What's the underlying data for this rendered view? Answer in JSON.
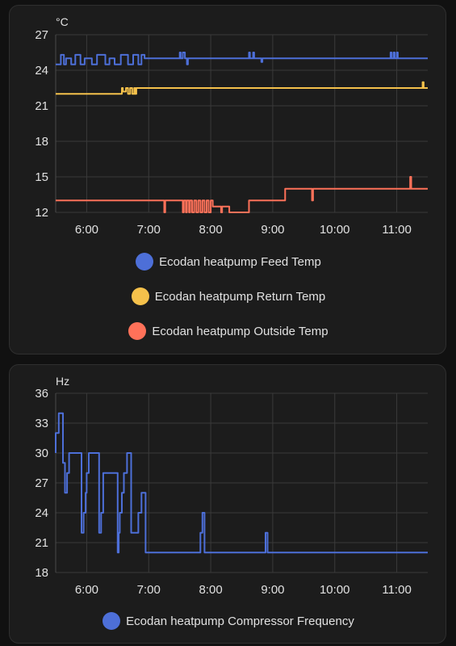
{
  "chart_data": [
    {
      "type": "line",
      "unit": "°C",
      "ylim": [
        12,
        27
      ],
      "yticks": [
        12,
        15,
        18,
        21,
        24,
        27
      ],
      "xlim": [
        "05:30",
        "11:30"
      ],
      "xticks": [
        "6:00",
        "7:00",
        "8:00",
        "9:00",
        "10:00",
        "11:00"
      ],
      "grid": true,
      "legend": "bottom",
      "series": [
        {
          "name": "Ecodan heatpump Feed Temp",
          "color": "#4d6fd8",
          "x": [
            "05:30",
            "05:32",
            "05:35",
            "05:35",
            "05:38",
            "05:38",
            "05:40",
            "05:40",
            "05:45",
            "05:45",
            "05:49",
            "05:49",
            "05:54",
            "05:54",
            "05:58",
            "05:58",
            "06:05",
            "06:05",
            "06:10",
            "06:10",
            "06:18",
            "06:18",
            "06:22",
            "06:22",
            "06:27",
            "06:27",
            "06:33",
            "06:33",
            "06:40",
            "06:40",
            "06:45",
            "06:45",
            "06:50",
            "06:50",
            "06:53",
            "06:53",
            "06:56",
            "06:56",
            "07:00",
            "07:00",
            "07:30",
            "07:30",
            "07:31",
            "07:31",
            "07:33",
            "07:33",
            "07:35",
            "07:35",
            "07:37",
            "07:37",
            "07:38",
            "07:38",
            "07:43",
            "07:43",
            "08:37",
            "08:37",
            "08:38",
            "08:38",
            "08:41",
            "08:41",
            "08:42",
            "08:42",
            "08:49",
            "08:49",
            "08:50",
            "08:50",
            "10:54",
            "10:54",
            "10:55",
            "10:55",
            "10:57",
            "10:57",
            "10:58",
            "10:58",
            "11:00",
            "11:00",
            "11:01",
            "11:01",
            "11:30"
          ],
          "y": [
            24.5,
            24.5,
            24.5,
            25.3,
            25.3,
            24.5,
            24.5,
            25.0,
            25.0,
            24.5,
            24.5,
            25.3,
            25.3,
            24.5,
            24.5,
            25.0,
            25.0,
            24.5,
            24.5,
            25.3,
            25.3,
            24.5,
            24.5,
            25.0,
            25.0,
            24.5,
            24.5,
            25.3,
            25.3,
            24.5,
            24.5,
            25.3,
            25.3,
            24.5,
            24.5,
            25.3,
            25.3,
            25.0,
            25.0,
            25.0,
            25.0,
            25.5,
            25.5,
            25.0,
            25.0,
            25.5,
            25.5,
            25.0,
            25.0,
            24.5,
            24.5,
            25.0,
            25.0,
            25.0,
            25.0,
            25.5,
            25.5,
            25.0,
            25.0,
            25.5,
            25.5,
            25.0,
            25.0,
            24.7,
            24.7,
            25.0,
            25.0,
            25.5,
            25.5,
            25.0,
            25.0,
            25.5,
            25.5,
            25.0,
            25.0,
            25.5,
            25.5,
            25.0,
            25.0
          ]
        },
        {
          "name": "Ecodan heatpump Return Temp",
          "color": "#f5c14b",
          "x": [
            "05:30",
            "06:34",
            "06:34",
            "06:35",
            "06:35",
            "06:38",
            "06:38",
            "06:40",
            "06:40",
            "06:42",
            "06:42",
            "06:44",
            "06:44",
            "06:46",
            "06:46",
            "06:47",
            "06:47",
            "06:48",
            "06:48",
            "06:50",
            "06:50",
            "11:25",
            "11:25",
            "11:26",
            "11:26",
            "11:30"
          ],
          "y": [
            22.0,
            22.0,
            22.5,
            22.5,
            22.2,
            22.2,
            22.5,
            22.5,
            22.0,
            22.0,
            22.5,
            22.5,
            22.0,
            22.0,
            22.5,
            22.5,
            22.0,
            22.0,
            22.5,
            22.5,
            22.5,
            22.5,
            23.0,
            23.0,
            22.5,
            22.5
          ]
        },
        {
          "name": "Ecodan heatpump Outside Temp",
          "color": "#ff7159",
          "x": [
            "05:30",
            "07:15",
            "07:15",
            "07:16",
            "07:16",
            "07:33",
            "07:33",
            "07:34",
            "07:34",
            "07:36",
            "07:36",
            "07:37",
            "07:37",
            "07:39",
            "07:39",
            "07:40",
            "07:40",
            "07:42",
            "07:42",
            "07:44",
            "07:44",
            "07:46",
            "07:46",
            "07:48",
            "07:48",
            "07:50",
            "07:50",
            "07:52",
            "07:52",
            "07:54",
            "07:54",
            "07:56",
            "07:56",
            "07:58",
            "07:58",
            "08:00",
            "08:00",
            "08:02",
            "08:02",
            "08:10",
            "08:10",
            "08:11",
            "08:11",
            "08:18",
            "08:18",
            "08:20",
            "08:20",
            "08:37",
            "08:37",
            "09:12",
            "09:12",
            "09:38",
            "09:38",
            "09:39",
            "09:39",
            "11:13",
            "11:13",
            "11:14",
            "11:14",
            "11:30"
          ],
          "y": [
            13,
            13,
            12,
            12,
            13,
            13,
            12,
            12,
            13,
            13,
            12,
            12,
            13,
            13,
            12,
            12,
            13,
            13,
            12,
            12,
            13,
            13,
            12,
            12,
            13,
            13,
            12,
            12,
            13,
            13,
            12,
            12,
            13,
            13,
            12,
            12,
            13,
            13,
            12.5,
            12.5,
            12,
            12,
            12.5,
            12.5,
            12,
            12,
            12,
            12,
            13,
            13,
            14,
            14,
            13,
            13,
            14,
            14,
            15,
            15,
            14,
            14
          ]
        }
      ]
    },
    {
      "type": "line",
      "unit": "Hz",
      "ylim": [
        18,
        36
      ],
      "yticks": [
        18,
        21,
        24,
        27,
        30,
        33,
        36
      ],
      "xlim": [
        "05:30",
        "11:30"
      ],
      "xticks": [
        "6:00",
        "7:00",
        "8:00",
        "9:00",
        "10:00",
        "11:00"
      ],
      "grid": true,
      "legend": "bottom",
      "series": [
        {
          "name": "Ecodan heatpump Compressor Frequency",
          "color": "#4d6fd8",
          "x": [
            "05:30",
            "05:30",
            "05:33",
            "05:33",
            "05:37",
            "05:37",
            "05:39",
            "05:39",
            "05:41",
            "05:41",
            "05:43",
            "05:43",
            "05:45",
            "05:45",
            "05:55",
            "05:55",
            "05:57",
            "05:57",
            "05:59",
            "05:59",
            "06:00",
            "06:00",
            "06:02",
            "06:02",
            "06:12",
            "06:12",
            "06:14",
            "06:14",
            "06:16",
            "06:16",
            "06:18",
            "06:18",
            "06:30",
            "06:30",
            "06:31",
            "06:31",
            "06:32",
            "06:32",
            "06:34",
            "06:34",
            "06:36",
            "06:36",
            "06:38",
            "06:38",
            "06:39",
            "06:39",
            "06:43",
            "06:43",
            "06:50",
            "06:50",
            "06:53",
            "06:53",
            "06:55",
            "06:55",
            "06:57",
            "06:57",
            "07:50",
            "07:50",
            "07:52",
            "07:52",
            "07:54",
            "07:54",
            "08:53",
            "08:53",
            "08:55",
            "08:55",
            "10:56",
            "10:56",
            "11:30"
          ],
          "y": [
            30,
            32,
            32,
            34,
            34,
            29,
            29,
            26,
            26,
            28,
            28,
            30,
            30,
            30,
            30,
            22,
            22,
            24,
            24,
            26,
            26,
            28,
            28,
            30,
            30,
            22,
            22,
            24,
            24,
            28,
            28,
            28,
            28,
            20,
            20,
            22,
            22,
            24,
            24,
            26,
            26,
            28,
            28,
            28,
            28,
            30,
            30,
            22,
            22,
            24,
            24,
            26,
            26,
            26,
            26,
            20,
            20,
            22,
            22,
            24,
            24,
            20,
            20,
            22,
            22,
            20,
            20,
            20,
            20
          ]
        }
      ]
    }
  ]
}
